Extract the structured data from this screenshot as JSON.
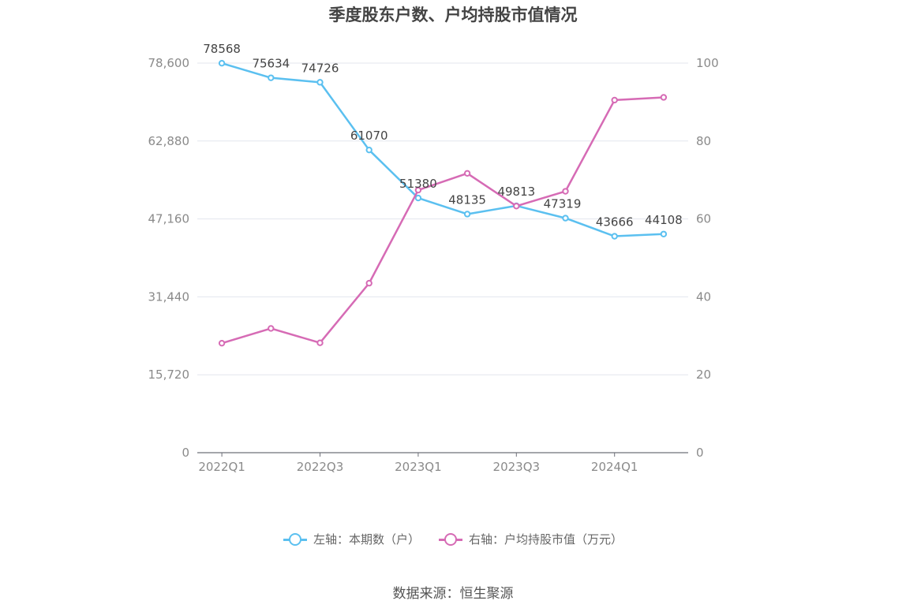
{
  "title": "季度股东户数、户均持股市值情况",
  "source": "数据来源：恒生聚源",
  "chart_data": {
    "type": "line",
    "title": "季度股东户数、户均持股市值情况",
    "x": [
      "2022Q1",
      "2022Q2",
      "2022Q3",
      "2022Q4",
      "2023Q1",
      "2023Q2",
      "2023Q3",
      "2023Q4",
      "2024Q1",
      "2024Q2"
    ],
    "x_tick_labels": [
      "2022Q1",
      "2022Q3",
      "2023Q1",
      "2023Q3",
      "2024Q1"
    ],
    "y_left": {
      "range": [
        0,
        78600
      ],
      "ticks": [
        0,
        15720,
        31440,
        47160,
        62880,
        78600
      ],
      "tick_labels": [
        "0",
        "15,720",
        "31,440",
        "47,160",
        "62,880",
        "78,600"
      ]
    },
    "y_right": {
      "range": [
        0,
        100
      ],
      "ticks": [
        0,
        20,
        40,
        60,
        80,
        100
      ],
      "tick_labels": [
        "0",
        "20",
        "40",
        "60",
        "80",
        "100"
      ]
    },
    "grid": true,
    "legend_position": "bottom",
    "series": [
      {
        "name": "左轴：本期数（户）",
        "axis": "left",
        "color": "#5bc0f0",
        "values": [
          78568,
          75634,
          74726,
          61070,
          51380,
          48135,
          49813,
          47319,
          43666,
          44108
        ],
        "labels": [
          "78568",
          "75634",
          "74726",
          "61070",
          "51380",
          "48135",
          "49813",
          "47319",
          "43666",
          "44108"
        ]
      },
      {
        "name": "右轴：户均持股市值（万元）",
        "axis": "right",
        "color": "#d66bb5",
        "values": [
          28.1,
          31.9,
          28.2,
          43.5,
          67.4,
          71.7,
          63.3,
          67.1,
          90.5,
          91.2
        ]
      }
    ]
  }
}
